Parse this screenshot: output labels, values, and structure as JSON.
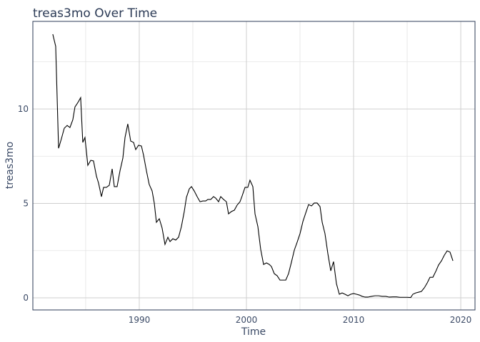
{
  "chart_data": {
    "type": "line",
    "title": "treas3mo Over Time",
    "x_label": "Time",
    "y_label": "treas3mo",
    "x": [
      1981.93,
      1982.2,
      1982.47,
      1982.73,
      1983.0,
      1983.27,
      1983.53,
      1983.8,
      1984.0,
      1984.27,
      1984.53,
      1984.73,
      1984.93,
      1985.2,
      1985.47,
      1985.73,
      1986.0,
      1986.2,
      1986.47,
      1986.67,
      1986.93,
      1987.2,
      1987.47,
      1987.67,
      1987.93,
      1988.2,
      1988.47,
      1988.67,
      1988.93,
      1989.2,
      1989.47,
      1989.67,
      1989.93,
      1990.2,
      1990.4,
      1990.67,
      1990.93,
      1991.2,
      1991.4,
      1991.6,
      1991.87,
      1992.13,
      1992.4,
      1992.67,
      1992.87,
      1993.13,
      1993.4,
      1993.67,
      1993.93,
      1994.2,
      1994.4,
      1994.67,
      1994.87,
      1995.13,
      1995.4,
      1995.67,
      1995.93,
      1996.2,
      1996.4,
      1996.67,
      1996.93,
      1997.13,
      1997.4,
      1997.6,
      1997.87,
      1998.13,
      1998.33,
      1998.6,
      1998.87,
      1999.13,
      1999.4,
      1999.6,
      1999.87,
      2000.13,
      2000.33,
      2000.6,
      2000.8,
      2001.07,
      2001.33,
      2001.6,
      2001.87,
      2002.13,
      2002.33,
      2002.6,
      2002.87,
      2003.13,
      2003.4,
      2003.67,
      2003.93,
      2004.2,
      2004.47,
      2004.73,
      2005.0,
      2005.27,
      2005.53,
      2005.8,
      2006.07,
      2006.33,
      2006.6,
      2006.87,
      2007.07,
      2007.33,
      2007.6,
      2007.87,
      2008.13,
      2008.4,
      2008.67,
      2008.93,
      2009.2,
      2009.47,
      2009.73,
      2010.0,
      2010.27,
      2010.53,
      2010.8,
      2011.07,
      2011.33,
      2011.67,
      2012.0,
      2012.33,
      2012.67,
      2013.0,
      2013.33,
      2013.67,
      2014.0,
      2014.33,
      2014.67,
      2015.0,
      2015.33,
      2015.53,
      2015.8,
      2016.07,
      2016.33,
      2016.6,
      2016.87,
      2017.13,
      2017.4,
      2017.67,
      2017.93,
      2018.2,
      2018.47,
      2018.73,
      2019.0,
      2019.27
    ],
    "values": [
      13.96,
      13.32,
      7.92,
      8.42,
      8.98,
      9.13,
      9.02,
      9.43,
      10.11,
      10.34,
      10.6,
      8.23,
      8.49,
      7.02,
      7.28,
      7.25,
      6.45,
      6.08,
      5.36,
      5.85,
      5.85,
      5.96,
      6.83,
      5.89,
      5.89,
      6.72,
      7.4,
      8.49,
      9.21,
      8.3,
      8.23,
      7.85,
      8.08,
      8.04,
      7.55,
      6.72,
      6.0,
      5.66,
      5.02,
      4.0,
      4.19,
      3.7,
      2.83,
      3.21,
      2.98,
      3.13,
      3.06,
      3.21,
      3.77,
      4.57,
      5.32,
      5.77,
      5.89,
      5.66,
      5.36,
      5.09,
      5.13,
      5.13,
      5.21,
      5.21,
      5.36,
      5.28,
      5.09,
      5.36,
      5.21,
      5.09,
      4.45,
      4.57,
      4.64,
      4.91,
      5.09,
      5.4,
      5.85,
      5.85,
      6.23,
      5.89,
      4.45,
      3.77,
      2.57,
      1.77,
      1.85,
      1.77,
      1.66,
      1.28,
      1.17,
      0.94,
      0.94,
      0.94,
      1.28,
      1.89,
      2.53,
      2.94,
      3.4,
      4.04,
      4.49,
      4.94,
      4.87,
      5.02,
      5.02,
      4.83,
      4.0,
      3.4,
      2.34,
      1.43,
      1.92,
      0.75,
      0.19,
      0.26,
      0.19,
      0.11,
      0.19,
      0.23,
      0.19,
      0.15,
      0.08,
      0.04,
      0.04,
      0.08,
      0.11,
      0.11,
      0.08,
      0.08,
      0.04,
      0.05,
      0.05,
      0.03,
      0.03,
      0.03,
      0.02,
      0.19,
      0.26,
      0.3,
      0.34,
      0.53,
      0.79,
      1.09,
      1.09,
      1.4,
      1.74,
      1.96,
      2.26,
      2.49,
      2.42,
      1.96
    ],
    "color": "#000000",
    "xlim": [
      1980.07,
      2021.33
    ],
    "ylim": [
      -0.64,
      14.64
    ],
    "xticks": [
      1990,
      2000,
      2010,
      2020
    ],
    "yticks": [
      0,
      5,
      10
    ],
    "xminor": [
      1985,
      1995,
      2005,
      2015
    ],
    "yminor": [
      2.5,
      7.5,
      12.5
    ],
    "grid": true
  }
}
